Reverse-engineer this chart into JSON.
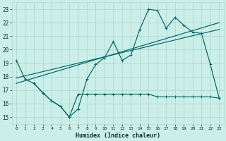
{
  "bg_color": "#cceee8",
  "grid_color": "#aaddcc",
  "line_color": "#006666",
  "xlabel": "Humidex (Indice chaleur)",
  "xlim": [
    -0.5,
    23.5
  ],
  "ylim": [
    14.5,
    23.5
  ],
  "yticks": [
    15,
    16,
    17,
    18,
    19,
    20,
    21,
    22,
    23
  ],
  "xticks": [
    0,
    1,
    2,
    3,
    4,
    5,
    6,
    7,
    8,
    9,
    10,
    11,
    12,
    13,
    14,
    15,
    16,
    17,
    18,
    19,
    20,
    21,
    22,
    23
  ],
  "line1_x": [
    0,
    1,
    2,
    3,
    4,
    5,
    6,
    7,
    8,
    9,
    10,
    11,
    12,
    13,
    14,
    15,
    16,
    17,
    18,
    19,
    20,
    21,
    22,
    23
  ],
  "line1_y": [
    19.2,
    17.8,
    17.5,
    16.8,
    16.2,
    15.8,
    15.0,
    15.6,
    17.8,
    18.9,
    19.4,
    20.6,
    19.2,
    19.6,
    21.5,
    23.0,
    22.9,
    21.6,
    22.4,
    21.8,
    21.3,
    21.2,
    18.9,
    16.4
  ],
  "line3_x": [
    0,
    23
  ],
  "line3_y": [
    17.9,
    21.5
  ],
  "line4_x": [
    0,
    23
  ],
  "line4_y": [
    17.5,
    22.0
  ],
  "line5_x": [
    2,
    3,
    4,
    5,
    6,
    7,
    8,
    9,
    10,
    11,
    12,
    13,
    14,
    15,
    16,
    17,
    18,
    19,
    20,
    21,
    22,
    23
  ],
  "line5_y": [
    17.5,
    16.8,
    16.2,
    15.8,
    15.0,
    16.7,
    16.7,
    16.7,
    16.7,
    16.7,
    16.7,
    16.7,
    16.7,
    16.7,
    16.5,
    16.5,
    16.5,
    16.5,
    16.5,
    16.5,
    16.5,
    16.4
  ]
}
